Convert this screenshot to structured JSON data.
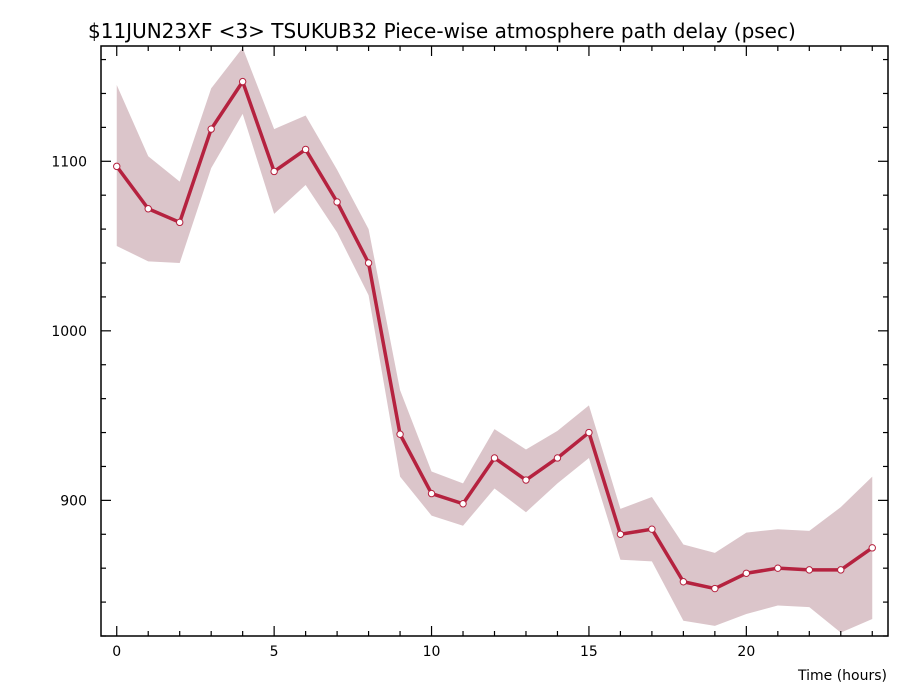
{
  "chart_data": {
    "type": "line",
    "title": "$11JUN23XF <3>  TSUKUB32  Piece-wise atmosphere path delay (psec)",
    "xlabel": "Time (hours)",
    "ylabel": "",
    "xlim": [
      -0.5,
      24.5
    ],
    "ylim": [
      820,
      1168
    ],
    "x_ticks": [
      0,
      5,
      10,
      15,
      20
    ],
    "x_tick_labels": [
      "0",
      "5",
      "10",
      "15",
      "20"
    ],
    "x_minor_step": 1,
    "y_ticks": [
      900,
      1000,
      1100
    ],
    "y_tick_labels": [
      "900",
      "1000",
      "1100"
    ],
    "y_minor_step": 20,
    "grid": false,
    "colors": {
      "line": "#b5223f",
      "band": "#dbc5ca",
      "marker_fill": "#ffffff"
    },
    "series": [
      {
        "x": [
          0,
          1,
          2,
          3,
          4,
          5,
          6,
          7,
          8,
          9,
          10,
          11,
          12,
          13,
          14,
          15,
          16,
          17,
          18,
          19,
          20,
          21,
          22,
          23,
          24
        ],
        "values": [
          1097,
          1072,
          1064,
          1119,
          1147,
          1094,
          1107,
          1076,
          1040,
          939,
          904,
          898,
          925,
          912,
          925,
          940,
          880,
          883,
          852,
          848,
          857,
          860,
          859,
          859,
          872
        ],
        "upper": [
          1145,
          1103,
          1088,
          1143,
          1167,
          1119,
          1127,
          1095,
          1060,
          965,
          917,
          910,
          942,
          930,
          941,
          956,
          895,
          902,
          874,
          869,
          881,
          883,
          882,
          896,
          914
        ],
        "lower": [
          1050,
          1041,
          1040,
          1096,
          1128,
          1069,
          1086,
          1058,
          1021,
          914,
          891,
          885,
          907,
          893,
          910,
          925,
          865,
          864,
          829,
          826,
          833,
          838,
          837,
          822,
          830
        ]
      }
    ]
  }
}
